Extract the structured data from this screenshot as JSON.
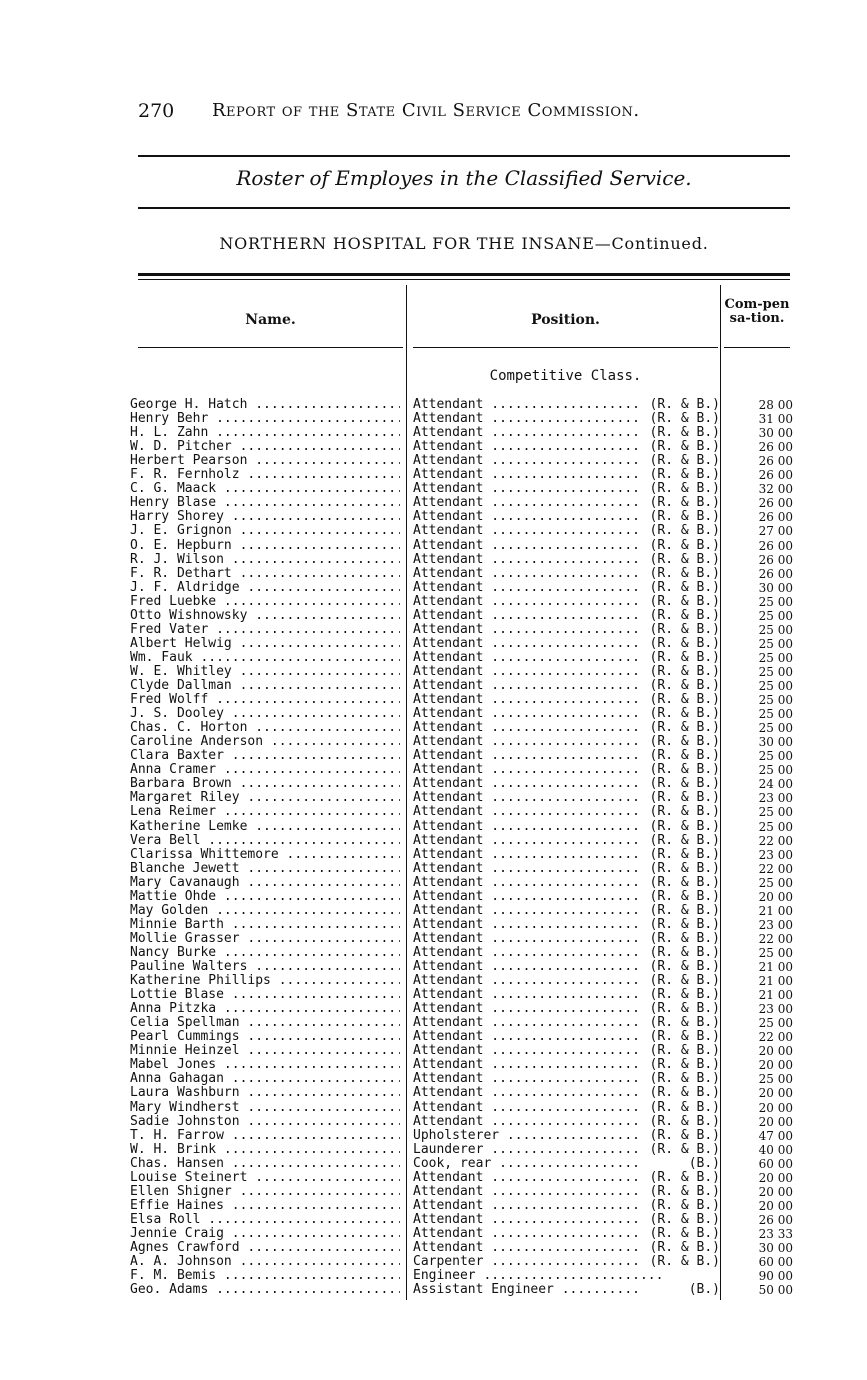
{
  "page_number": "270",
  "running_title": "Report of the State Civil Service Commission.",
  "subtitle": "Roster of Employes in the Classified Service.",
  "institution": "NORTHERN HOSPITAL FOR THE INSANE—Continued.",
  "columns": {
    "name": "Name.",
    "position": "Position.",
    "compensation": "Com-pensa-tion."
  },
  "class_heading": "Competitive Class.",
  "rows": [
    [
      "George H. Hatch",
      "Attendant",
      "(R. & B.)",
      "28 00"
    ],
    [
      "Henry Behr",
      "Attendant",
      "(R. & B.)",
      "31 00"
    ],
    [
      "H. L. Zahn",
      "Attendant",
      "(R. & B.)",
      "30 00"
    ],
    [
      "W. D. Pitcher",
      "Attendant",
      "(R. & B.)",
      "26 00"
    ],
    [
      "Herbert Pearson",
      "Attendant",
      "(R. & B.)",
      "26 00"
    ],
    [
      "F. R. Fernholz",
      "Attendant",
      "(R. & B.)",
      "26 00"
    ],
    [
      "C. G. Maack",
      "Attendant",
      "(R. & B.)",
      "32 00"
    ],
    [
      "Henry Blase",
      "Attendant",
      "(R. & B.)",
      "26 00"
    ],
    [
      "Harry Shorey",
      "Attendant",
      "(R. & B.)",
      "26 00"
    ],
    [
      "J. E. Grignon",
      "Attendant",
      "(R. & B.)",
      "27 00"
    ],
    [
      "O. E. Hepburn",
      "Attendant",
      "(R. & B.)",
      "26 00"
    ],
    [
      "R. J. Wilson",
      "Attendant",
      "(R. & B.)",
      "26 00"
    ],
    [
      "F. R. Dethart",
      "Attendant",
      "(R. & B.)",
      "26 00"
    ],
    [
      "J. F. Aldridge",
      "Attendant",
      "(R. & B.)",
      "30 00"
    ],
    [
      "Fred Luebke",
      "Attendant",
      "(R. & B.)",
      "25 00"
    ],
    [
      "Otto Wishnowsky",
      "Attendant",
      "(R. & B.)",
      "25 00"
    ],
    [
      "Fred Vater",
      "Attendant",
      "(R. & B.)",
      "25 00"
    ],
    [
      "Albert Helwig",
      "Attendant",
      "(R. & B.)",
      "25 00"
    ],
    [
      "Wm. Fauk",
      "Attendant",
      "(R. & B.)",
      "25 00"
    ],
    [
      "W. E. Whitley",
      "Attendant",
      "(R. & B.)",
      "25 00"
    ],
    [
      "Clyde Dallman",
      "Attendant",
      "(R. & B.)",
      "25 00"
    ],
    [
      "Fred Wolff",
      "Attendant",
      "(R. & B.)",
      "25 00"
    ],
    [
      "J. S. Dooley",
      "Attendant",
      "(R. & B.)",
      "25 00"
    ],
    [
      "Chas. C. Horton",
      "Attendant",
      "(R. & B.)",
      "25 00"
    ],
    [
      "Caroline Anderson",
      "Attendant",
      "(R. & B.)",
      "30 00"
    ],
    [
      "Clara Baxter",
      "Attendant",
      "(R. & B.)",
      "25 00"
    ],
    [
      "Anna Cramer",
      "Attendant",
      "(R. & B.)",
      "25 00"
    ],
    [
      "Barbara Brown",
      "Attendant",
      "(R. & B.)",
      "24 00"
    ],
    [
      "Margaret Riley",
      "Attendant",
      "(R. & B.)",
      "23 00"
    ],
    [
      "Lena Reimer",
      "Attendant",
      "(R. & B.)",
      "25 00"
    ],
    [
      "Katherine Lemke",
      "Attendant",
      "(R. & B.)",
      "25 00"
    ],
    [
      "Vera Bell",
      "Attendant",
      "(R. & B.)",
      "22 00"
    ],
    [
      "Clarissa Whittemore",
      "Attendant",
      "(R. & B.)",
      "23 00"
    ],
    [
      "Blanche Jewett",
      "Attendant",
      "(R. & B.)",
      "22 00"
    ],
    [
      "Mary Cavanaugh",
      "Attendant",
      "(R. & B.)",
      "25 00"
    ],
    [
      "Mattie Ohde",
      "Attendant",
      "(R. & B.)",
      "20 00"
    ],
    [
      "May Golden",
      "Attendant",
      "(R. & B.)",
      "21 00"
    ],
    [
      "Minnie Barth",
      "Attendant",
      "(R. & B.)",
      "23 00"
    ],
    [
      "Mollie Grasser",
      "Attendant",
      "(R. & B.)",
      "22 00"
    ],
    [
      "Nancy Burke",
      "Attendant",
      "(R. & B.)",
      "25 00"
    ],
    [
      "Pauline Walters",
      "Attendant",
      "(R. & B.)",
      "21 00"
    ],
    [
      "Katherine Phillips",
      "Attendant",
      "(R. & B.)",
      "21 00"
    ],
    [
      "Lottie Blase",
      "Attendant",
      "(R. & B.)",
      "21 00"
    ],
    [
      "Anna Pitzka",
      "Attendant",
      "(R. & B.)",
      "23 00"
    ],
    [
      "Celia Spellman",
      "Attendant",
      "(R. & B.)",
      "25 00"
    ],
    [
      "Pearl Cummings",
      "Attendant",
      "(R. & B.)",
      "22 00"
    ],
    [
      "Minnie Heinzel",
      "Attendant",
      "(R. & B.)",
      "20 00"
    ],
    [
      "Mabel Jones",
      "Attendant",
      "(R. & B.)",
      "20 00"
    ],
    [
      "Anna Gahagan",
      "Attendant",
      "(R. & B.)",
      "25 00"
    ],
    [
      "Laura Washburn",
      "Attendant",
      "(R. & B.)",
      "20 00"
    ],
    [
      "Mary Windherst",
      "Attendant",
      "(R. & B.)",
      "20 00"
    ],
    [
      "Sadie Johnston",
      "Attendant",
      "(R. & B.)",
      "20 00"
    ],
    [
      "T. H. Farrow",
      "Upholsterer",
      "(R. & B.)",
      "47 00"
    ],
    [
      "W. H. Brink",
      "Launderer",
      "(R. & B.)",
      "40 00"
    ],
    [
      "Chas. Hansen",
      "Cook, rear",
      "(B.)",
      "60 00"
    ],
    [
      "Louise Steinert",
      "Attendant",
      "(R. & B.)",
      "20 00"
    ],
    [
      "Ellen Shigner",
      "Attendant",
      "(R. & B.)",
      "20 00"
    ],
    [
      "Effie Haines",
      "Attendant",
      "(R. & B.)",
      "20 00"
    ],
    [
      "Elsa Roll",
      "Attendant",
      "(R. & B.)",
      "26 00"
    ],
    [
      "Jennie Craig",
      "Attendant",
      "(R. & B.)",
      "23 33"
    ],
    [
      "Agnes Crawford",
      "Attendant",
      "(R. & B.)",
      "30 00"
    ],
    [
      "A. A. Johnson",
      "Carpenter",
      "(R. & B.)",
      "60 00"
    ],
    [
      "F. M. Bemis",
      "Engineer",
      "",
      "90 00"
    ],
    [
      "Geo. Adams",
      "Assistant Engineer",
      "(B.)",
      "50 00"
    ]
  ]
}
